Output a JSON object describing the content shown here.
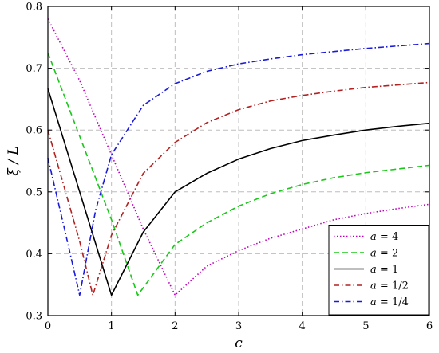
{
  "chart_data": {
    "type": "line",
    "xlabel": "c",
    "ylabel": "ξ / L",
    "xlim": [
      0,
      6
    ],
    "ylim": [
      0.3,
      0.8
    ],
    "x_ticks": [
      0,
      1,
      2,
      3,
      4,
      5,
      6
    ],
    "y_ticks": [
      0.3,
      0.4,
      0.5,
      0.6,
      0.7,
      0.8
    ],
    "x_tick_labels": [
      "0",
      "1",
      "2",
      "3",
      "4",
      "5",
      "6"
    ],
    "y_tick_labels": [
      "0.3",
      "0.4",
      "0.5",
      "0.6",
      "0.7",
      "0.8"
    ],
    "grid": true,
    "legend_position": "bottom-right",
    "series": [
      {
        "var": "a",
        "eq": " = ",
        "val": "4",
        "color": "#bf00bf",
        "dash": "1.5 2.5",
        "x": [
          0,
          0.5,
          1,
          1.5,
          2,
          2.5,
          3,
          3.5,
          4,
          4.5,
          5,
          5.5,
          6
        ],
        "values": [
          0.78,
          0.68,
          0.56,
          0.44,
          0.333,
          0.38,
          0.405,
          0.425,
          0.44,
          0.455,
          0.465,
          0.473,
          0.48
        ]
      },
      {
        "var": "a",
        "eq": " = ",
        "val": "2",
        "color": "#19c819",
        "dash": "7 4",
        "x": [
          0,
          0.5,
          1,
          1.414,
          2,
          2.5,
          3,
          3.5,
          4,
          4.5,
          5,
          5.5,
          6
        ],
        "values": [
          0.725,
          0.59,
          0.455,
          0.333,
          0.415,
          0.45,
          0.477,
          0.497,
          0.512,
          0.523,
          0.531,
          0.537,
          0.543
        ]
      },
      {
        "var": "a",
        "eq": " = ",
        "val": "1",
        "color": "#000000",
        "dash": "",
        "x": [
          0,
          0.5,
          1,
          1.5,
          2,
          2.5,
          3,
          3.5,
          4,
          4.5,
          5,
          5.5,
          6
        ],
        "values": [
          0.667,
          0.5,
          0.333,
          0.435,
          0.5,
          0.53,
          0.553,
          0.57,
          0.583,
          0.592,
          0.6,
          0.606,
          0.611
        ]
      },
      {
        "var": "a",
        "eq": " = ",
        "val": "1/2",
        "color": "#b22222",
        "dash": "7 3 1.5 3",
        "x": [
          0,
          0.25,
          0.5,
          0.707,
          1,
          1.5,
          2,
          2.5,
          3,
          3.5,
          4,
          4.5,
          5,
          5.5,
          6
        ],
        "values": [
          0.6,
          0.51,
          0.42,
          0.333,
          0.43,
          0.53,
          0.58,
          0.612,
          0.633,
          0.647,
          0.656,
          0.663,
          0.669,
          0.673,
          0.677
        ]
      },
      {
        "var": "a",
        "eq": " = ",
        "val": "1/4",
        "color": "#1a1ad9",
        "dash": "7 3 1.5 3",
        "x": [
          0,
          0.25,
          0.5,
          0.75,
          1,
          1.5,
          2,
          2.5,
          3,
          3.5,
          4,
          4.5,
          5,
          5.5,
          6
        ],
        "values": [
          0.555,
          0.445,
          0.333,
          0.47,
          0.56,
          0.64,
          0.675,
          0.695,
          0.707,
          0.715,
          0.722,
          0.727,
          0.732,
          0.736,
          0.74
        ]
      }
    ]
  }
}
